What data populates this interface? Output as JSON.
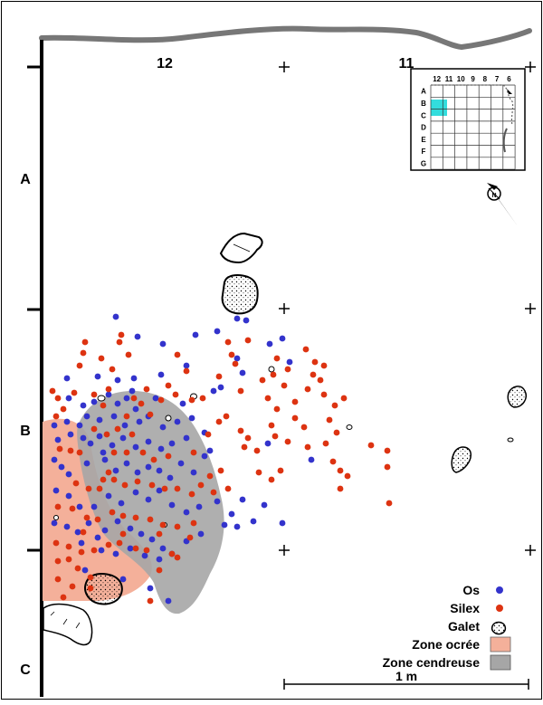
{
  "columns": [
    "12",
    "11"
  ],
  "rows": [
    "A",
    "B",
    "C"
  ],
  "legend": {
    "os": "Os",
    "silex": "Silex",
    "galet": "Galet",
    "zone_ocree": "Zone ocrée",
    "zone_cendreuse": "Zone cendreuse"
  },
  "scale": {
    "label": "1 m"
  },
  "colors": {
    "os": "#3333cc",
    "silex": "#dd3311",
    "zone_ocree": "#f4b09a",
    "zone_cendreuse": "#a6a6a6",
    "highlight": "#33dddd"
  },
  "inset": {
    "col_labels": [
      "12",
      "11",
      "10",
      "9",
      "8",
      "7",
      "6"
    ],
    "row_labels": [
      "A",
      "B",
      "C",
      "D",
      "E",
      "F",
      "G"
    ]
  },
  "north_arrow": {
    "symbol": "N"
  },
  "os_points": [
    [
      128,
      350
    ],
    [
      152,
      372
    ],
    [
      180,
      380
    ],
    [
      216,
      370
    ],
    [
      240,
      366
    ],
    [
      262,
      352
    ],
    [
      272,
      354
    ],
    [
      298,
      380
    ],
    [
      312,
      374
    ],
    [
      320,
      400
    ],
    [
      74,
      418
    ],
    [
      108,
      416
    ],
    [
      130,
      420
    ],
    [
      148,
      418
    ],
    [
      178,
      414
    ],
    [
      206,
      404
    ],
    [
      244,
      428
    ],
    [
      236,
      432
    ],
    [
      262,
      396
    ],
    [
      268,
      412
    ],
    [
      76,
      440
    ],
    [
      92,
      448
    ],
    [
      104,
      444
    ],
    [
      120,
      436
    ],
    [
      130,
      446
    ],
    [
      140,
      440
    ],
    [
      150,
      452
    ],
    [
      96,
      460
    ],
    [
      110,
      464
    ],
    [
      126,
      460
    ],
    [
      138,
      470
    ],
    [
      154,
      466
    ],
    [
      164,
      460
    ],
    [
      180,
      472
    ],
    [
      196,
      466
    ],
    [
      212,
      462
    ],
    [
      60,
      470
    ],
    [
      74,
      466
    ],
    [
      64,
      486
    ],
    [
      78,
      480
    ],
    [
      92,
      484
    ],
    [
      110,
      482
    ],
    [
      124,
      492
    ],
    [
      136,
      484
    ],
    [
      150,
      494
    ],
    [
      164,
      488
    ],
    [
      178,
      496
    ],
    [
      190,
      490
    ],
    [
      206,
      484
    ],
    [
      226,
      478
    ],
    [
      60,
      508
    ],
    [
      68,
      516
    ],
    [
      76,
      524
    ],
    [
      96,
      512
    ],
    [
      116,
      508
    ],
    [
      128,
      520
    ],
    [
      140,
      512
    ],
    [
      152,
      522
    ],
    [
      164,
      516
    ],
    [
      176,
      520
    ],
    [
      188,
      528
    ],
    [
      200,
      512
    ],
    [
      214,
      522
    ],
    [
      232,
      498
    ],
    [
      62,
      542
    ],
    [
      76,
      548
    ],
    [
      88,
      560
    ],
    [
      104,
      560
    ],
    [
      120,
      548
    ],
    [
      134,
      556
    ],
    [
      150,
      544
    ],
    [
      164,
      552
    ],
    [
      176,
      542
    ],
    [
      190,
      558
    ],
    [
      206,
      566
    ],
    [
      220,
      560
    ],
    [
      240,
      554
    ],
    [
      256,
      568
    ],
    [
      268,
      552
    ],
    [
      280,
      576
    ],
    [
      60,
      578
    ],
    [
      74,
      582
    ],
    [
      86,
      588
    ],
    [
      98,
      578
    ],
    [
      116,
      586
    ],
    [
      130,
      576
    ],
    [
      144,
      584
    ],
    [
      156,
      590
    ],
    [
      168,
      596
    ],
    [
      180,
      606
    ],
    [
      190,
      612
    ],
    [
      206,
      598
    ],
    [
      222,
      590
    ],
    [
      248,
      580
    ],
    [
      262,
      582
    ],
    [
      292,
      558
    ],
    [
      312,
      578
    ],
    [
      94,
      630
    ],
    [
      112,
      608
    ],
    [
      128,
      612
    ],
    [
      144,
      606
    ],
    [
      160,
      614
    ],
    [
      176,
      618
    ],
    [
      186,
      664
    ],
    [
      166,
      650
    ],
    [
      100,
      490
    ],
    [
      114,
      500
    ],
    [
      88,
      470
    ],
    [
      202,
      446
    ],
    [
      226,
      504
    ],
    [
      296,
      490
    ],
    [
      344,
      508
    ],
    [
      108,
      594
    ],
    [
      136,
      640
    ],
    [
      146,
      432
    ],
    [
      172,
      440
    ],
    [
      90,
      600
    ]
  ],
  "silex_points": [
    [
      94,
      378
    ],
    [
      92,
      390
    ],
    [
      134,
      370
    ],
    [
      132,
      378
    ],
    [
      142,
      392
    ],
    [
      178,
      442
    ],
    [
      166,
      458
    ],
    [
      212,
      442
    ],
    [
      224,
      440
    ],
    [
      252,
      378
    ],
    [
      256,
      392
    ],
    [
      260,
      402
    ],
    [
      302,
      414
    ],
    [
      306,
      396
    ],
    [
      338,
      386
    ],
    [
      348,
      400
    ],
    [
      346,
      414
    ],
    [
      358,
      404
    ],
    [
      354,
      420
    ],
    [
      358,
      436
    ],
    [
      380,
      440
    ],
    [
      296,
      440
    ],
    [
      306,
      452
    ],
    [
      326,
      444
    ],
    [
      326,
      462
    ],
    [
      336,
      472
    ],
    [
      364,
      464
    ],
    [
      372,
      478
    ],
    [
      360,
      490
    ],
    [
      340,
      494
    ],
    [
      368,
      510
    ],
    [
      376,
      520
    ],
    [
      384,
      526
    ],
    [
      410,
      492
    ],
    [
      428,
      498
    ],
    [
      428,
      516
    ],
    [
      430,
      556
    ],
    [
      376,
      540
    ],
    [
      242,
      466
    ],
    [
      250,
      460
    ],
    [
      266,
      476
    ],
    [
      274,
      484
    ],
    [
      270,
      494
    ],
    [
      300,
      470
    ],
    [
      304,
      482
    ],
    [
      318,
      488
    ],
    [
      284,
      498
    ],
    [
      286,
      522
    ],
    [
      300,
      530
    ],
    [
      310,
      520
    ],
    [
      64,
      440
    ],
    [
      70,
      452
    ],
    [
      82,
      434
    ],
    [
      104,
      436
    ],
    [
      114,
      448
    ],
    [
      104,
      474
    ],
    [
      118,
      480
    ],
    [
      130,
      474
    ],
    [
      146,
      480
    ],
    [
      126,
      500
    ],
    [
      140,
      500
    ],
    [
      158,
      500
    ],
    [
      170,
      508
    ],
    [
      186,
      504
    ],
    [
      214,
      500
    ],
    [
      232,
      526
    ],
    [
      244,
      520
    ],
    [
      236,
      544
    ],
    [
      252,
      540
    ],
    [
      62,
      460
    ],
    [
      66,
      496
    ],
    [
      78,
      498
    ],
    [
      88,
      500
    ],
    [
      84,
      534
    ],
    [
      98,
      540
    ],
    [
      114,
      530
    ],
    [
      126,
      530
    ],
    [
      138,
      536
    ],
    [
      152,
      532
    ],
    [
      168,
      536
    ],
    [
      182,
      540
    ],
    [
      196,
      540
    ],
    [
      212,
      546
    ],
    [
      222,
      536
    ],
    [
      64,
      560
    ],
    [
      80,
      562
    ],
    [
      96,
      572
    ],
    [
      108,
      574
    ],
    [
      124,
      566
    ],
    [
      136,
      570
    ],
    [
      150,
      572
    ],
    [
      166,
      574
    ],
    [
      180,
      580
    ],
    [
      196,
      582
    ],
    [
      214,
      578
    ],
    [
      62,
      600
    ],
    [
      76,
      604
    ],
    [
      90,
      610
    ],
    [
      104,
      608
    ],
    [
      120,
      602
    ],
    [
      132,
      600
    ],
    [
      150,
      606
    ],
    [
      162,
      608
    ],
    [
      176,
      630
    ],
    [
      196,
      616
    ],
    [
      64,
      620
    ],
    [
      76,
      618
    ],
    [
      86,
      628
    ],
    [
      100,
      638
    ],
    [
      64,
      640
    ],
    [
      80,
      648
    ],
    [
      100,
      650
    ],
    [
      70,
      660
    ],
    [
      166,
      664
    ],
    [
      190,
      612
    ],
    [
      176,
      590
    ],
    [
      140,
      460
    ],
    [
      156,
      446
    ],
    [
      194,
      436
    ],
    [
      206,
      410
    ],
    [
      186,
      426
    ],
    [
      230,
      480
    ],
    [
      162,
      430
    ],
    [
      148,
      440
    ],
    [
      120,
      430
    ],
    [
      88,
      404
    ],
    [
      112,
      396
    ],
    [
      124,
      408
    ],
    [
      196,
      392
    ],
    [
      274,
      376
    ],
    [
      290,
      420
    ],
    [
      314,
      426
    ],
    [
      370,
      448
    ],
    [
      340,
      430
    ],
    [
      318,
      408
    ],
    [
      266,
      432
    ],
    [
      242,
      416
    ],
    [
      58,
      432
    ],
    [
      136,
      590
    ],
    [
      210,
      594
    ],
    [
      120,
      522
    ],
    [
      92,
      588
    ],
    [
      110,
      540
    ]
  ]
}
